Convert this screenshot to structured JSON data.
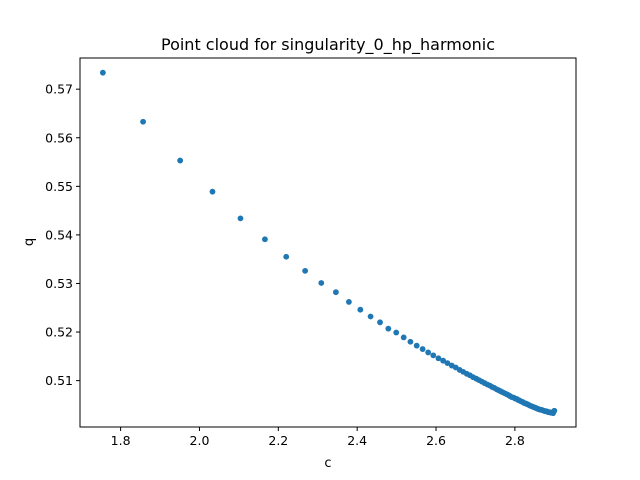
{
  "chart_data": {
    "type": "scatter",
    "title": "Point cloud for singularity_0_hp_harmonic",
    "xlabel": "c",
    "ylabel": "q",
    "xlim": [
      1.697,
      2.955
    ],
    "ylim": [
      0.50045,
      0.57642
    ],
    "xticks": [
      "1.8",
      "2.0",
      "2.2",
      "2.4",
      "2.6",
      "2.8"
    ],
    "yticks": [
      "0.51",
      "0.52",
      "0.53",
      "0.54",
      "0.55",
      "0.56",
      "0.57"
    ],
    "grid": false,
    "legend": "none",
    "color": "#1f77b4",
    "series": [
      {
        "points": [
          [
            1.755,
            0.5734
          ],
          [
            1.857,
            0.5633
          ],
          [
            1.951,
            0.5553
          ],
          [
            2.033,
            0.5489
          ],
          [
            2.104,
            0.5434
          ],
          [
            2.166,
            0.5391
          ],
          [
            2.22,
            0.5355
          ],
          [
            2.268,
            0.5326
          ],
          [
            2.309,
            0.5301
          ],
          [
            2.346,
            0.5282
          ],
          [
            2.379,
            0.5262
          ],
          [
            2.408,
            0.5246
          ],
          [
            2.434,
            0.5232
          ],
          [
            2.458,
            0.522
          ],
          [
            2.479,
            0.5207
          ],
          [
            2.499,
            0.5199
          ],
          [
            2.518,
            0.5189
          ],
          [
            2.535,
            0.518
          ],
          [
            2.551,
            0.5172
          ],
          [
            2.566,
            0.5165
          ],
          [
            2.58,
            0.5158
          ],
          [
            2.593,
            0.5152
          ],
          [
            2.606,
            0.5146
          ],
          [
            2.618,
            0.5141
          ],
          [
            2.629,
            0.5136
          ],
          [
            2.64,
            0.5131
          ],
          [
            2.65,
            0.5127
          ],
          [
            2.66,
            0.5122
          ],
          [
            2.669,
            0.5118
          ],
          [
            2.678,
            0.5114
          ],
          [
            2.686,
            0.5111
          ],
          [
            2.694,
            0.5107
          ],
          [
            2.702,
            0.5104
          ],
          [
            2.709,
            0.5101
          ],
          [
            2.716,
            0.5098
          ],
          [
            2.723,
            0.5095
          ],
          [
            2.73,
            0.5092
          ],
          [
            2.736,
            0.509
          ],
          [
            2.742,
            0.5087
          ],
          [
            2.748,
            0.5085
          ],
          [
            2.754,
            0.5082
          ],
          [
            2.759,
            0.508
          ],
          [
            2.764,
            0.5078
          ],
          [
            2.769,
            0.5076
          ],
          [
            2.774,
            0.5074
          ],
          [
            2.779,
            0.5072
          ],
          [
            2.784,
            0.507
          ],
          [
            2.788,
            0.5068
          ],
          [
            2.792,
            0.5066
          ],
          [
            2.797,
            0.5065
          ],
          [
            2.801,
            0.5063
          ],
          [
            2.805,
            0.5062
          ],
          [
            2.809,
            0.506
          ],
          [
            2.812,
            0.5059
          ],
          [
            2.816,
            0.5057
          ],
          [
            2.82,
            0.5056
          ],
          [
            2.823,
            0.5054
          ],
          [
            2.827,
            0.5053
          ],
          [
            2.83,
            0.5052
          ],
          [
            2.833,
            0.5051
          ],
          [
            2.837,
            0.5049
          ],
          [
            2.84,
            0.5048
          ],
          [
            2.843,
            0.5047
          ],
          [
            2.846,
            0.5046
          ],
          [
            2.849,
            0.5045
          ],
          [
            2.852,
            0.5044
          ],
          [
            2.855,
            0.5043
          ],
          [
            2.858,
            0.5042
          ],
          [
            2.861,
            0.5041
          ],
          [
            2.864,
            0.504
          ],
          [
            2.867,
            0.504
          ],
          [
            2.87,
            0.5039
          ],
          [
            2.873,
            0.5038
          ],
          [
            2.876,
            0.5037
          ],
          [
            2.879,
            0.5037
          ],
          [
            2.882,
            0.5036
          ],
          [
            2.885,
            0.5035
          ],
          [
            2.888,
            0.5035
          ],
          [
            2.891,
            0.5034
          ],
          [
            2.894,
            0.5034
          ],
          [
            2.897,
            0.5033
          ],
          [
            2.9,
            0.5038
          ]
        ]
      }
    ]
  }
}
